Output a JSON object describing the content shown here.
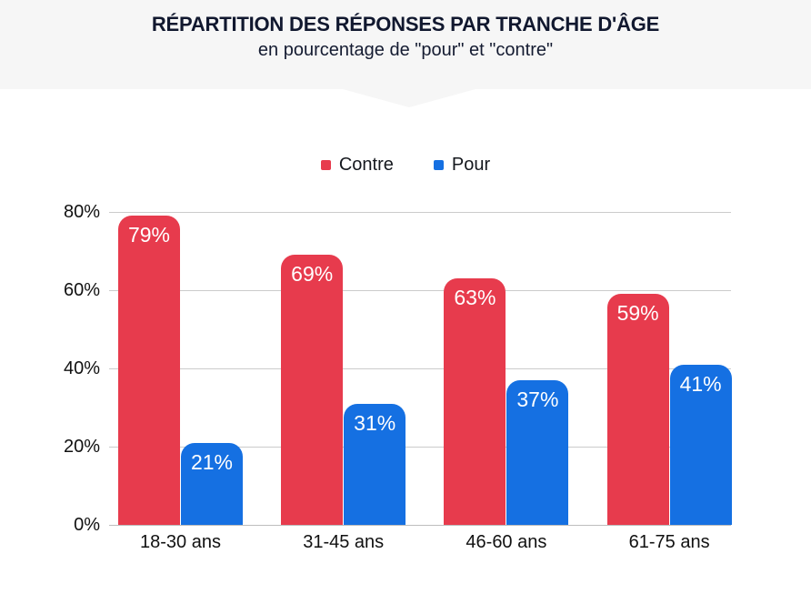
{
  "header": {
    "title": "RÉPARTITION DES RÉPONSES PAR TRANCHE D'ÂGE",
    "subtitle": "en pourcentage de \"pour\" et \"contre\""
  },
  "legend": [
    {
      "label": "Contre",
      "color": "#e73b4d"
    },
    {
      "label": "Pour",
      "color": "#1570e2"
    }
  ],
  "chart_data": {
    "type": "bar",
    "title": "RÉPARTITION DES RÉPONSES PAR TRANCHE D'ÂGE",
    "subtitle": "en pourcentage de \"pour\" et \"contre\"",
    "categories": [
      "18-30 ans",
      "31-45 ans",
      "46-60 ans",
      "61-75 ans"
    ],
    "series": [
      {
        "name": "Contre",
        "color": "#e73b4d",
        "values": [
          79,
          69,
          63,
          59
        ]
      },
      {
        "name": "Pour",
        "color": "#1570e2",
        "values": [
          21,
          31,
          37,
          41
        ]
      }
    ],
    "value_suffix": "%",
    "y_ticks": [
      80,
      60,
      40,
      20,
      0
    ],
    "y_tick_labels": [
      "80%",
      "60%",
      "40%",
      "20%",
      "0%"
    ],
    "ylim": [
      0,
      80
    ],
    "grid": "horizontal",
    "legend_position": "top-center",
    "bar_label_color": "#ffffff"
  },
  "colors": {
    "header_background": "#f6f6f6",
    "title_text": "#11182f",
    "gridline": "#cbcbcb",
    "axis_text": "#111111"
  }
}
